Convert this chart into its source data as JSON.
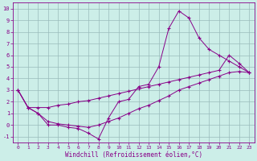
{
  "xlabel": "Windchill (Refroidissement éolien,°C)",
  "bg_color": "#cceee8",
  "line_color": "#880088",
  "grid_color": "#99bbbb",
  "ylim": [
    -1.5,
    10.5
  ],
  "xlim": [
    -0.5,
    23.5
  ],
  "yticks": [
    -1,
    0,
    1,
    2,
    3,
    4,
    5,
    6,
    7,
    8,
    9,
    10
  ],
  "xticks": [
    0,
    1,
    2,
    3,
    4,
    5,
    6,
    7,
    8,
    9,
    10,
    11,
    12,
    13,
    14,
    15,
    16,
    17,
    18,
    19,
    20,
    21,
    22,
    23
  ],
  "line1_x": [
    0,
    1,
    2,
    3,
    4,
    5,
    6,
    7,
    8,
    9,
    10,
    11,
    12,
    13,
    14,
    15,
    16,
    17,
    18,
    19,
    20,
    21,
    22,
    23
  ],
  "line1_y": [
    3.0,
    1.5,
    1.0,
    0.0,
    0.0,
    -0.2,
    -0.3,
    -0.7,
    -1.2,
    0.6,
    2.0,
    2.2,
    3.3,
    3.5,
    5.0,
    8.3,
    9.8,
    9.2,
    7.5,
    6.5,
    6.0,
    5.5,
    5.0,
    4.5
  ],
  "line2_x": [
    0,
    1,
    2,
    3,
    4,
    5,
    6,
    7,
    8,
    9,
    10,
    11,
    12,
    13,
    14,
    15,
    16,
    17,
    18,
    19,
    20,
    21,
    22,
    23
  ],
  "line2_y": [
    3.0,
    1.5,
    1.5,
    1.5,
    1.7,
    1.8,
    2.0,
    2.1,
    2.3,
    2.5,
    2.7,
    2.9,
    3.1,
    3.3,
    3.5,
    3.7,
    3.9,
    4.1,
    4.3,
    4.5,
    4.7,
    6.0,
    5.3,
    4.5
  ],
  "line3_x": [
    0,
    1,
    2,
    3,
    4,
    5,
    6,
    7,
    8,
    9,
    10,
    11,
    12,
    13,
    14,
    15,
    16,
    17,
    18,
    19,
    20,
    21,
    22,
    23
  ],
  "line3_y": [
    3.0,
    1.5,
    1.0,
    0.3,
    0.1,
    0.0,
    -0.1,
    -0.2,
    0.0,
    0.3,
    0.6,
    1.0,
    1.4,
    1.7,
    2.1,
    2.5,
    3.0,
    3.3,
    3.6,
    3.9,
    4.2,
    4.5,
    4.6,
    4.5
  ]
}
